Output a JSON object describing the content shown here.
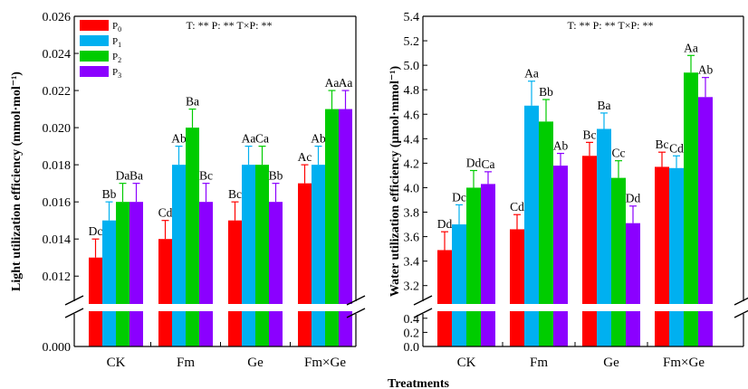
{
  "xlabel": "Treatments",
  "colors": {
    "P0": "#ff0000",
    "P1": "#00b0f0",
    "P2": "#00cc00",
    "P3": "#8b00ff"
  },
  "legend": [
    {
      "base": "P",
      "sub": "0"
    },
    {
      "base": "P",
      "sub": "1"
    },
    {
      "base": "P",
      "sub": "2"
    },
    {
      "base": "P",
      "sub": "3"
    }
  ],
  "chart_data": [
    {
      "type": "bar",
      "ylabel": "Light utilization efficiency (mmol·mol⁻¹)",
      "stats": "T: ** P: ** T×P: **",
      "categories": [
        "CK",
        "Fm",
        "Ge",
        "Fm×Ge"
      ],
      "axis_break": true,
      "yticks_lower": [
        "0.000"
      ],
      "yticks_upper": [
        "0.012",
        "0.014",
        "0.016",
        "0.018",
        "0.020",
        "0.022",
        "0.024",
        "0.026"
      ],
      "upper_range": [
        0.0105,
        0.026
      ],
      "series": [
        {
          "name": "P0",
          "values": [
            0.013,
            0.014,
            0.015,
            0.017
          ],
          "errors": [
            0.001,
            0.001,
            0.001,
            0.001
          ],
          "labels": [
            "Dc",
            "Cd",
            "Bc",
            "Ac"
          ]
        },
        {
          "name": "P1",
          "values": [
            0.015,
            0.018,
            0.018,
            0.018
          ],
          "errors": [
            0.001,
            0.001,
            0.001,
            0.001
          ],
          "labels": [
            "Bb",
            "Ab",
            "Aa",
            "Ab"
          ]
        },
        {
          "name": "P2",
          "values": [
            0.016,
            0.02,
            0.018,
            0.021
          ],
          "errors": [
            0.001,
            0.001,
            0.001,
            0.001
          ],
          "labels": [
            "Da",
            "Ba",
            "Ca",
            "Aa"
          ]
        },
        {
          "name": "P3",
          "values": [
            0.016,
            0.016,
            0.016,
            0.021
          ],
          "errors": [
            0.001,
            0.001,
            0.001,
            0.001
          ],
          "labels": [
            "Ba",
            "Bc",
            "Bb",
            "Aa"
          ]
        }
      ]
    },
    {
      "type": "bar",
      "ylabel": "Water utilization efficiency (μmol·mmol⁻¹)",
      "stats": "T: ** P: ** T×P: **",
      "categories": [
        "CK",
        "Fm",
        "Ge",
        "Fm×Ge"
      ],
      "axis_break": true,
      "yticks_lower": [
        "0.0",
        "0.2",
        "0.4"
      ],
      "yticks_upper": [
        "3.2",
        "3.4",
        "3.6",
        "3.8",
        "4.0",
        "4.2",
        "4.4",
        "4.6",
        "4.8",
        "5.0",
        "5.2",
        "5.4"
      ],
      "upper_range": [
        3.05,
        5.4
      ],
      "series": [
        {
          "name": "P0",
          "values": [
            3.49,
            3.66,
            4.26,
            4.17
          ],
          "errors": [
            0.15,
            0.12,
            0.11,
            0.12
          ],
          "labels": [
            "Dd",
            "Cd",
            "Bc",
            "Bc"
          ]
        },
        {
          "name": "P1",
          "values": [
            3.7,
            4.67,
            4.48,
            4.16
          ],
          "errors": [
            0.16,
            0.2,
            0.13,
            0.1
          ],
          "labels": [
            "Dc",
            "Aa",
            "Ba",
            "Cd"
          ]
        },
        {
          "name": "P2",
          "values": [
            4.0,
            4.54,
            4.08,
            4.94
          ],
          "errors": [
            0.14,
            0.18,
            0.14,
            0.14
          ],
          "labels": [
            "Dd",
            "Bb",
            "Cc",
            "Aa"
          ]
        },
        {
          "name": "P3",
          "values": [
            4.03,
            4.18,
            3.71,
            4.74
          ],
          "errors": [
            0.1,
            0.1,
            0.14,
            0.16
          ],
          "labels": [
            "Ca",
            "Ab",
            "Dd",
            "Ab"
          ]
        }
      ]
    }
  ]
}
